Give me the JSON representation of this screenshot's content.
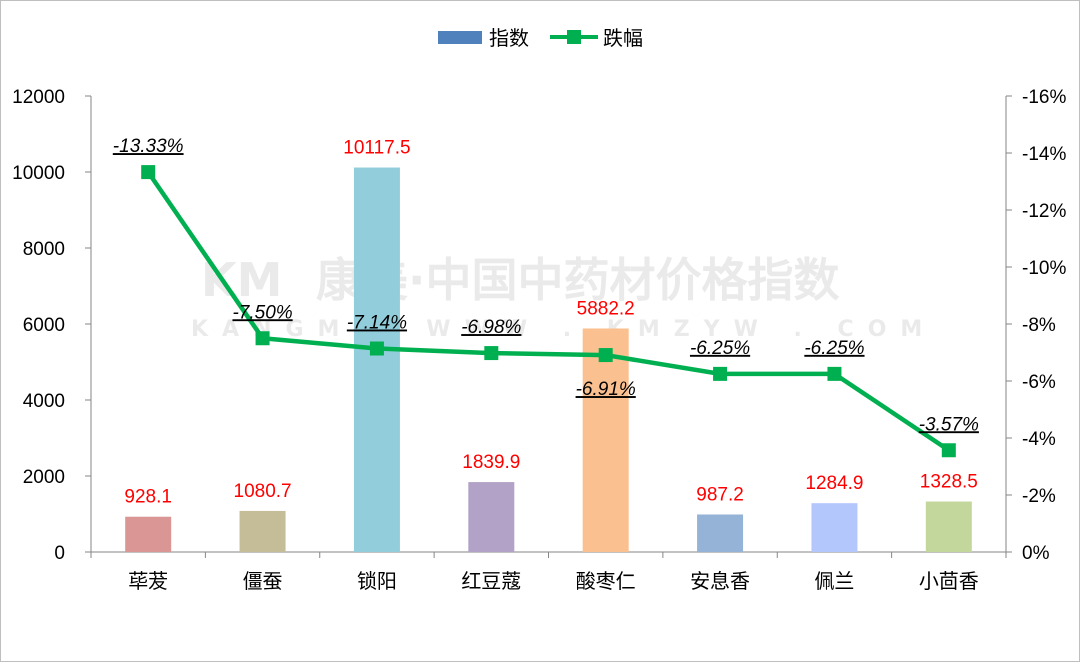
{
  "chart_data": {
    "type": "bar",
    "categories": [
      "荜茇",
      "僵蚕",
      "锁阳",
      "红豆蔻",
      "酸枣仁",
      "安息香",
      "佩兰",
      "小茴香"
    ],
    "series": [
      {
        "name": "指数",
        "type": "bar",
        "axis": "left",
        "values": [
          928.1,
          1080.7,
          10117.5,
          1839.9,
          5882.2,
          987.2,
          1284.9,
          1328.5
        ],
        "value_labels": [
          "928.1",
          "1080.7",
          "10117.5",
          "1839.9",
          "5882.2",
          "987.2",
          "1284.9",
          "1328.5"
        ],
        "colors": [
          "#d99694",
          "#c4bd97",
          "#92cddc",
          "#b3a2c7",
          "#fac090",
          "#95b3d7",
          "#b4c7fd",
          "#c3d69b"
        ],
        "legend_color": "#4f81bd",
        "label_color": "#ff0000"
      },
      {
        "name": "跌幅",
        "type": "line",
        "axis": "right",
        "values": [
          -13.33,
          -7.5,
          -7.14,
          -6.98,
          -6.91,
          -6.25,
          -6.25,
          -3.57
        ],
        "value_labels": [
          "-13.33%",
          "-7.50%",
          "-7.14%",
          "-6.98%",
          "-6.91%",
          "-6.25%",
          "-6.25%",
          "-3.57%"
        ],
        "color": "#00b050"
      }
    ],
    "left_axis": {
      "min": 0,
      "max": 12000,
      "ticks": [
        0,
        2000,
        4000,
        6000,
        8000,
        10000,
        12000
      ],
      "tick_labels": [
        "0",
        "2000",
        "4000",
        "6000",
        "8000",
        "10000",
        "12000"
      ]
    },
    "right_axis": {
      "min": 0,
      "max": -16,
      "reversed": true,
      "ticks": [
        0,
        -2,
        -4,
        -6,
        -8,
        -10,
        -12,
        -14,
        -16
      ],
      "tick_labels": [
        "0%",
        "-2%",
        "-4%",
        "-6%",
        "-8%",
        "-10%",
        "-12%",
        "-14%",
        "-16%"
      ]
    },
    "legend_position": "top-center",
    "grid": false,
    "watermark": {
      "cn": "康美·中国中药材价格指数",
      "en": "KANGMEI WWW . KMZYW . COM"
    }
  }
}
